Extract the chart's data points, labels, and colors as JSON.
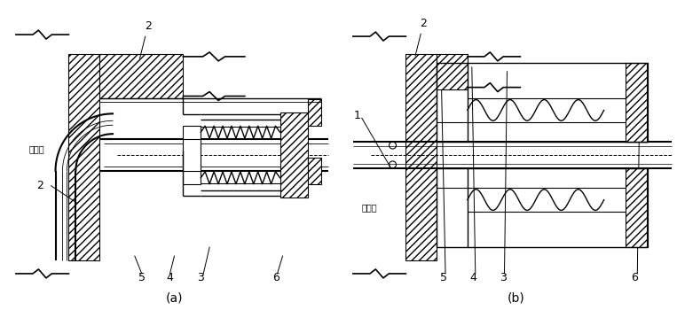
{
  "background_color": "#ffffff",
  "line_color": "#000000",
  "label_a": "(a)",
  "label_b": "(b)",
  "fig_width": 7.63,
  "fig_height": 3.5,
  "dpi": 100
}
